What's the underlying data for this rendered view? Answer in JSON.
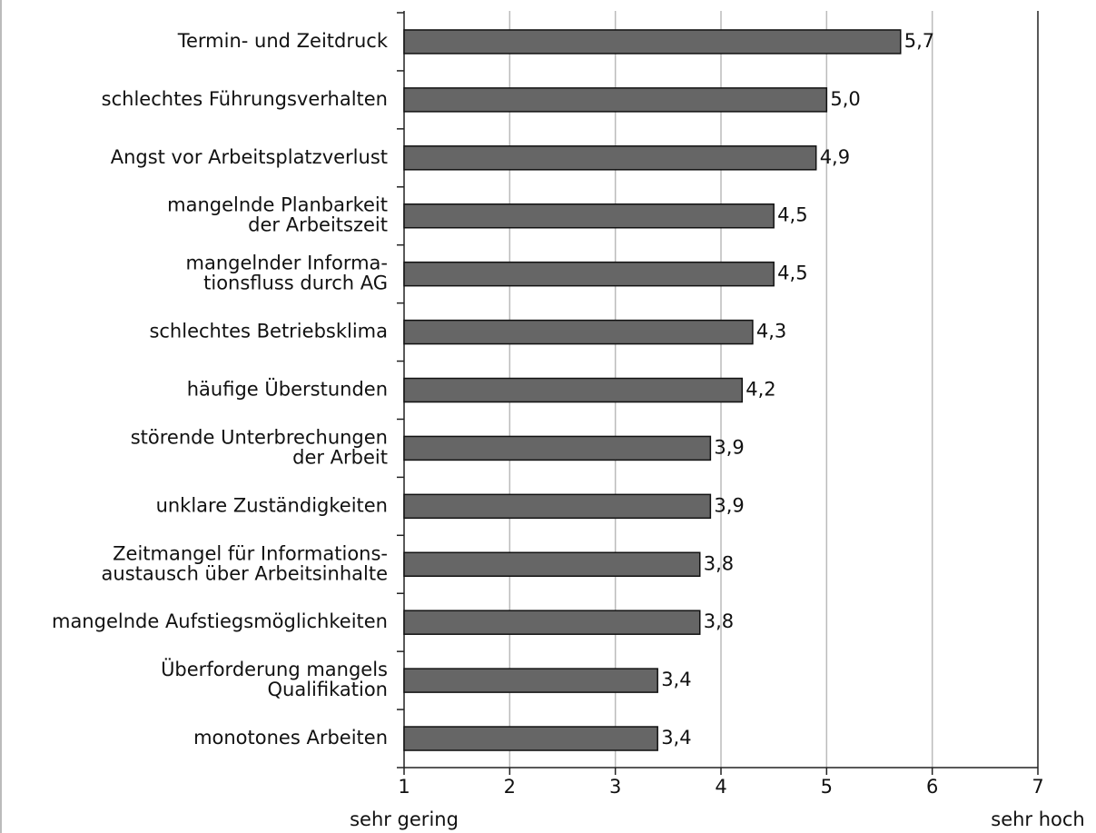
{
  "chart_data": {
    "type": "bar",
    "orientation": "horizontal",
    "categories": [
      "Termin- und Zeitdruck",
      "schlechtes Führungsverhalten",
      "Angst vor Arbeitsplatzverlust",
      [
        "mangelnde Planbarkeit",
        "der Arbeitszeit"
      ],
      [
        "mangelnder Informa-",
        "tionsfluss durch AG"
      ],
      "schlechtes Betriebsklima",
      "häufige Überstunden",
      [
        "störende Unterbrechungen",
        "der Arbeit"
      ],
      "unklare Zuständigkeiten",
      [
        "Zeitmangel für Informations-",
        "austausch über Arbeitsinhalte"
      ],
      "mangelnde Aufstiegsmöglichkeiten",
      [
        "Überforderung mangels",
        "Qualifikation"
      ],
      "monotones Arbeiten"
    ],
    "values": [
      5.7,
      5.0,
      4.9,
      4.5,
      4.5,
      4.3,
      4.2,
      3.9,
      3.9,
      3.8,
      3.8,
      3.4,
      3.4
    ],
    "value_labels": [
      "5,7",
      "5,0",
      "4,9",
      "4,5",
      "4,5",
      "4,3",
      "4,2",
      "3,9",
      "3,9",
      "3,8",
      "3,8",
      "3,4",
      "3,4"
    ],
    "color": "#666666",
    "xlim": [
      1,
      7
    ],
    "xticks": [
      1,
      2,
      3,
      4,
      5,
      6,
      7
    ],
    "grid": true,
    "x_min_label": "sehr gering",
    "x_max_label": "sehr hoch"
  }
}
